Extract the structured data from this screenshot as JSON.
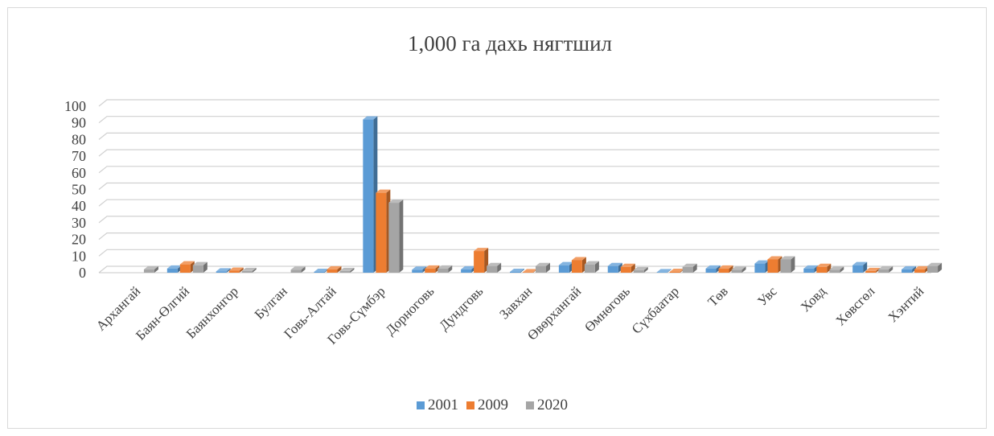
{
  "chart_data": {
    "type": "bar",
    "title": "1,000 га дахь нягтшил",
    "xlabel": "",
    "ylabel": "",
    "ylim": [
      0,
      100
    ],
    "yticks": [
      0,
      10,
      20,
      30,
      40,
      50,
      60,
      70,
      80,
      90,
      100
    ],
    "grid": true,
    "legend_position": "bottom",
    "categories": [
      "Архангай",
      "Баян-Өлгий",
      "Баянхонгор",
      "Булган",
      "Говь-Алтай",
      "Говь-Сүмбэр",
      "Дорноговь",
      "Дундговь",
      "Завхан",
      "Өвөрхангай",
      "Өмнөговь",
      "Сүхбаатар",
      "Төв",
      "Увс",
      "Ховд",
      "Хөвсгөл",
      "Хэнтий"
    ],
    "series": [
      {
        "name": "2001",
        "color": "#5b9bd5",
        "values": [
          0,
          2.5,
          0.8,
          0,
          0.5,
          92,
          1.8,
          2,
          0.5,
          4.5,
          4,
          0.3,
          2.5,
          5.5,
          2.5,
          4.5,
          2
        ]
      },
      {
        "name": "2009",
        "color": "#ed7d31",
        "values": [
          0,
          5,
          1.2,
          0,
          2,
          48,
          2.5,
          13,
          0.3,
          7.5,
          3.5,
          0.5,
          2.5,
          8,
          3.5,
          1,
          2
        ]
      },
      {
        "name": "2020",
        "color": "#a5a5a5",
        "values": [
          2,
          4.5,
          1,
          1.8,
          1,
          42,
          2.5,
          4,
          4,
          5,
          1.5,
          3.5,
          1.8,
          8,
          1.8,
          2,
          4
        ]
      }
    ]
  }
}
